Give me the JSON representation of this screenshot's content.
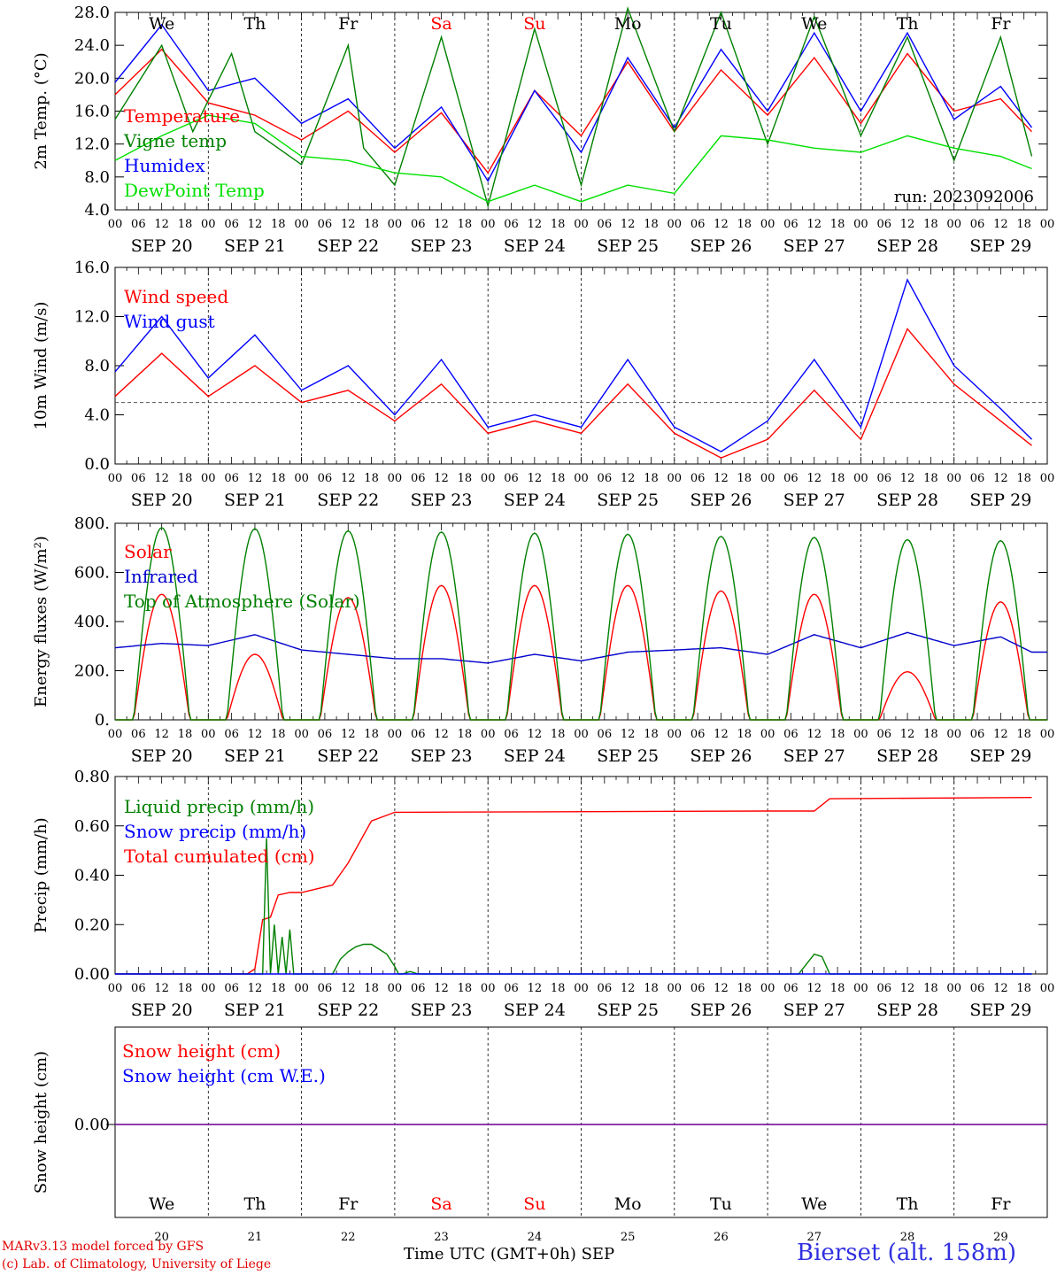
{
  "chart_data": [
    {
      "type": "line",
      "ylabel": "2m Temp. (°C)",
      "ylim": [
        4.0,
        28.0
      ],
      "yticks": [
        "4.0",
        "8.0",
        "12.0",
        "16.0",
        "20.0",
        "24.0",
        "28.0"
      ],
      "annotation": "run: 2023092006",
      "legend": [
        "Temperature",
        "Vigne temp",
        "Humidex",
        "DewPoint Temp"
      ],
      "series": [
        {
          "name": "Temperature",
          "color": "#ff0000",
          "x": [
            0,
            12,
            24,
            36,
            48,
            60,
            72,
            84,
            96,
            108,
            120,
            132,
            144,
            156,
            168,
            180,
            192,
            204,
            216,
            228,
            236
          ],
          "y": [
            18.0,
            23.5,
            17.0,
            15.5,
            12.5,
            16.0,
            11.0,
            15.8,
            8.5,
            18.5,
            13.0,
            22.0,
            13.5,
            21.0,
            15.5,
            22.5,
            14.5,
            23.0,
            16.0,
            17.5,
            13.5
          ]
        },
        {
          "name": "Humidex",
          "color": "#0000ff",
          "x": [
            0,
            12,
            24,
            36,
            48,
            60,
            72,
            84,
            96,
            108,
            120,
            132,
            144,
            156,
            168,
            180,
            192,
            204,
            216,
            228,
            236
          ],
          "y": [
            19.5,
            26.5,
            18.5,
            20.0,
            14.5,
            17.5,
            11.5,
            16.5,
            7.5,
            18.5,
            11.0,
            22.5,
            14.0,
            23.5,
            16.0,
            25.5,
            16.0,
            25.5,
            15.0,
            19.0,
            14.0
          ]
        },
        {
          "name": "Vigne temp",
          "color": "#008000",
          "x": [
            0,
            12,
            20,
            30,
            36,
            48,
            60,
            64,
            72,
            84,
            96,
            108,
            120,
            132,
            144,
            156,
            168,
            180,
            192,
            204,
            216,
            228,
            236
          ],
          "y": [
            15.0,
            24.0,
            13.5,
            23.0,
            13.5,
            9.5,
            24.0,
            11.5,
            7.0,
            25.0,
            4.5,
            26.0,
            7.0,
            28.5,
            13.5,
            28.0,
            12.0,
            27.5,
            13.0,
            25.0,
            10.0,
            25.0,
            10.5
          ]
        },
        {
          "name": "DewPoint Temp",
          "color": "#00e000",
          "x": [
            0,
            12,
            24,
            36,
            48,
            60,
            72,
            84,
            96,
            108,
            120,
            132,
            144,
            156,
            168,
            180,
            192,
            204,
            216,
            228,
            236
          ],
          "y": [
            10.0,
            13.0,
            15.5,
            14.5,
            10.5,
            10.0,
            8.5,
            8.0,
            5.0,
            7.0,
            5.0,
            7.0,
            6.0,
            13.0,
            12.5,
            11.5,
            11.0,
            13.0,
            11.5,
            10.5,
            9.0
          ]
        }
      ]
    },
    {
      "type": "line",
      "ylabel": "10m Wind (m/s)",
      "ylim": [
        0.0,
        16.0
      ],
      "yticks": [
        "0.0",
        "4.0",
        "8.0",
        "12.0",
        "16.0"
      ],
      "reference_line": 5.0,
      "legend": [
        "Wind speed",
        "Wind gust"
      ],
      "series": [
        {
          "name": "Wind speed",
          "color": "#ff0000",
          "x": [
            0,
            12,
            24,
            36,
            48,
            60,
            72,
            84,
            96,
            108,
            120,
            132,
            144,
            156,
            168,
            180,
            192,
            204,
            216,
            228,
            236
          ],
          "y": [
            5.5,
            9.0,
            5.5,
            8.0,
            5.0,
            6.0,
            3.5,
            6.5,
            2.5,
            3.5,
            2.5,
            6.5,
            2.5,
            0.5,
            2.0,
            6.0,
            2.0,
            11.0,
            6.5,
            3.5,
            1.5
          ]
        },
        {
          "name": "Wind gust",
          "color": "#0000ff",
          "x": [
            0,
            12,
            24,
            36,
            48,
            60,
            72,
            84,
            96,
            108,
            120,
            132,
            144,
            156,
            168,
            180,
            192,
            204,
            216,
            228,
            236
          ],
          "y": [
            7.5,
            12.0,
            7.0,
            10.5,
            6.0,
            8.0,
            4.0,
            8.5,
            3.0,
            4.0,
            3.0,
            8.5,
            3.0,
            1.0,
            3.5,
            8.5,
            3.0,
            15.0,
            8.0,
            4.5,
            2.0
          ]
        }
      ]
    },
    {
      "type": "line",
      "ylabel": "Energy fluxes (W/m²)",
      "ylim": [
        0,
        900
      ],
      "yticks": [
        "0.",
        "200.",
        "400.",
        "600.",
        "800."
      ],
      "legend": [
        "Solar",
        "Infrared",
        "Top of Atmosphere (Solar)"
      ],
      "series": [
        {
          "name": "Solar",
          "color": "#ff0000",
          "peaks": [
            575,
            300,
            560,
            615,
            615,
            615,
            590,
            575,
            220,
            540
          ]
        },
        {
          "name": "Infrared",
          "color": "#0000cc",
          "x": [
            0,
            12,
            24,
            36,
            48,
            60,
            72,
            84,
            96,
            108,
            120,
            132,
            144,
            156,
            168,
            180,
            192,
            204,
            216,
            228,
            236
          ],
          "y": [
            330,
            350,
            340,
            390,
            320,
            300,
            280,
            280,
            260,
            300,
            270,
            310,
            320,
            330,
            300,
            390,
            330,
            400,
            340,
            380,
            310
          ]
        },
        {
          "name": "Top of Atmosphere (Solar)",
          "color": "#008000",
          "peaks": [
            880,
            875,
            865,
            860,
            855,
            850,
            840,
            835,
            825,
            820
          ]
        }
      ]
    },
    {
      "type": "line",
      "ylabel": "Precip (mm/h)",
      "ylim": [
        0.0,
        0.8
      ],
      "yticks": [
        "0.00",
        "0.20",
        "0.40",
        "0.60",
        "0.80"
      ],
      "legend": [
        "Liquid precip (mm/h)",
        "Snow precip (mm/h)",
        "Total cumulated (cm)"
      ],
      "series": [
        {
          "name": "Total cumulated (cm)",
          "color": "#ff0000",
          "x": [
            0,
            34,
            36,
            38,
            40,
            42,
            45,
            48,
            56,
            60,
            66,
            72,
            168,
            180,
            184,
            236
          ],
          "y": [
            0,
            0,
            0.02,
            0.22,
            0.23,
            0.32,
            0.33,
            0.33,
            0.36,
            0.45,
            0.62,
            0.655,
            0.66,
            0.66,
            0.71,
            0.715
          ]
        },
        {
          "name": "Liquid precip (mm/h)",
          "color": "#008000",
          "x": [
            0,
            30,
            38,
            39,
            40,
            41,
            42,
            43,
            44,
            45,
            46,
            48,
            56,
            58,
            60,
            62,
            64,
            66,
            68,
            70,
            72,
            73,
            74,
            76,
            78,
            176,
            178,
            180,
            182,
            184,
            236
          ],
          "y": [
            0,
            0,
            0,
            0.55,
            0,
            0.2,
            0,
            0.15,
            0,
            0.18,
            0,
            0,
            0,
            0.06,
            0.09,
            0.11,
            0.12,
            0.12,
            0.1,
            0.08,
            0.03,
            0,
            0,
            0.01,
            0,
            0,
            0.04,
            0.08,
            0.07,
            0,
            0
          ]
        },
        {
          "name": "Snow precip (mm/h)",
          "color": "#0000ff",
          "x": [
            0,
            236
          ],
          "y": [
            0,
            0
          ]
        }
      ]
    },
    {
      "type": "line",
      "ylabel": "Snow height (cm)",
      "yticks": [
        "0.00"
      ],
      "legend": [
        "Snow height (cm)",
        "Snow height (cm W.E.)"
      ],
      "series": [
        {
          "name": "Snow height (cm)",
          "color": "#ff0000",
          "x": [
            0,
            236
          ],
          "y": [
            0,
            0
          ]
        },
        {
          "name": "Snow height (cm W.E.)",
          "color": "#0000ff",
          "x": [
            0,
            236
          ],
          "y": [
            0,
            0
          ]
        }
      ]
    }
  ],
  "x_axis": {
    "hour_ticks": [
      "00",
      "06",
      "12",
      "18"
    ],
    "dates": [
      "SEP 20",
      "SEP 21",
      "SEP 22",
      "SEP 23",
      "SEP 24",
      "SEP 25",
      "SEP 26",
      "SEP 27",
      "SEP 28",
      "SEP 29"
    ],
    "weekdays": [
      "We",
      "Th",
      "Fr",
      "Sa",
      "Su",
      "Mo",
      "Tu",
      "We",
      "Th",
      "Fr"
    ],
    "weekday_colors": [
      "#000000",
      "#000000",
      "#000000",
      "#ff0000",
      "#ff0000",
      "#000000",
      "#000000",
      "#000000",
      "#000000",
      "#000000"
    ],
    "day_numbers": [
      "20",
      "21",
      "22",
      "23",
      "24",
      "25",
      "26",
      "27",
      "28",
      "29"
    ]
  },
  "footer": {
    "model": "MARv3.13 model forced by GFS",
    "lab": "(c) Lab. of Climatology, University of Liege",
    "time_label": "Time UTC (GMT+0h) SEP",
    "station": "Bierset (alt. 158m)"
  }
}
